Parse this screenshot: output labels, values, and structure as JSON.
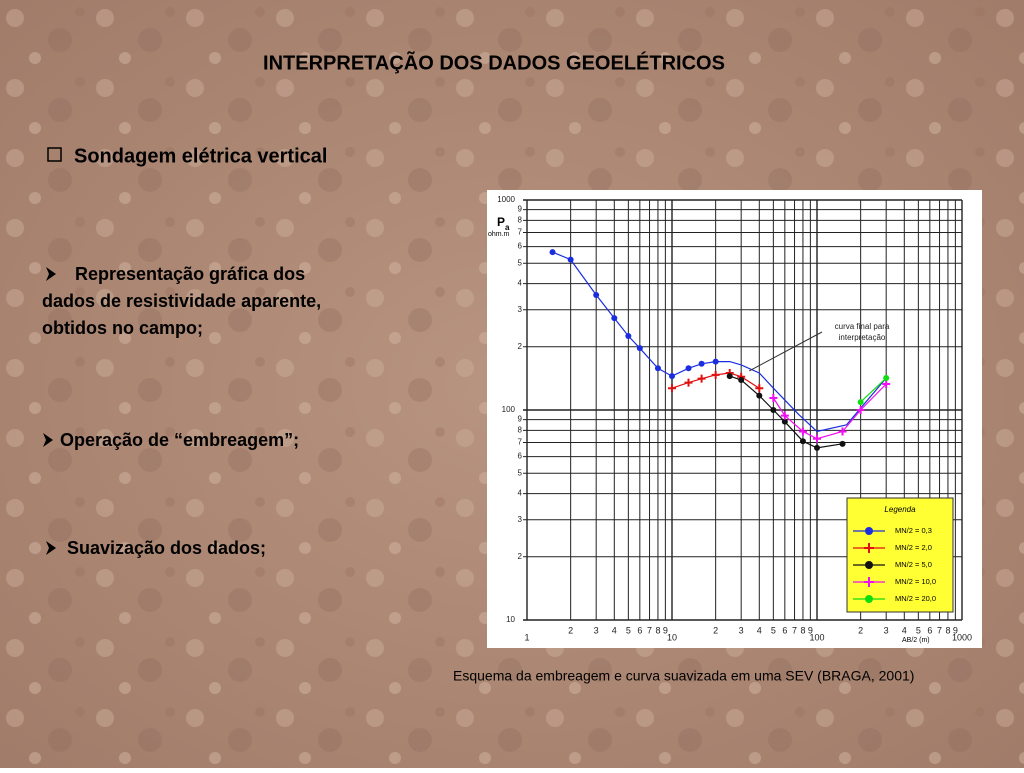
{
  "title": "INTERPRETAÇÃO DOS DADOS GEOELÉTRICOS",
  "heading": "Sondagem elétrica vertical",
  "items": [
    {
      "lines": [
        "Representação gráfica dos",
        "dados de resistividade aparente,",
        "obtidos no campo;"
      ]
    },
    {
      "lines": [
        "Operação  de “embreagem”;"
      ]
    },
    {
      "lines": [
        "Suavização dos dados;"
      ]
    }
  ],
  "caption": "Esquema da embreagem e curva suavizada em uma SEV (BRAGA, 2001)",
  "chart_data": {
    "type": "line",
    "xscale": "log",
    "yscale": "log",
    "grid": true,
    "ylabel": "P",
    "ylabel_sub": "a",
    "yunit": "ohm.m",
    "xlabel": "AB/2 (m)",
    "xlim": [
      1,
      1000
    ],
    "ylim": [
      10,
      1000
    ],
    "xticks": [
      1,
      2,
      3,
      4,
      5,
      6,
      7,
      8,
      9,
      10,
      {
        "value": 20,
        "label": "2"
      },
      {
        "value": 30,
        "label": "3"
      },
      {
        "value": 40,
        "label": "4"
      },
      {
        "value": 50,
        "label": "5"
      },
      {
        "value": 60,
        "label": "6"
      },
      {
        "value": 70,
        "label": "7"
      },
      {
        "value": 80,
        "label": "8"
      },
      {
        "value": 90,
        "label": "9"
      },
      100,
      {
        "value": 200,
        "label": "2"
      },
      {
        "value": 300,
        "label": "3"
      },
      {
        "value": 400,
        "label": "4"
      },
      {
        "value": 500,
        "label": "5"
      },
      {
        "value": 600,
        "label": "6"
      },
      {
        "value": 700,
        "label": "7"
      },
      {
        "value": 800,
        "label": "8"
      },
      {
        "value": 900,
        "label": "9"
      },
      1000
    ],
    "yticks": [
      10,
      {
        "value": 20,
        "label": "2"
      },
      {
        "value": 30,
        "label": "3"
      },
      {
        "value": 40,
        "label": "4"
      },
      {
        "value": 50,
        "label": "5"
      },
      {
        "value": 60,
        "label": "6"
      },
      {
        "value": 70,
        "label": "7"
      },
      {
        "value": 80,
        "label": "8"
      },
      {
        "value": 90,
        "label": "9"
      },
      100,
      {
        "value": 200,
        "label": "2"
      },
      {
        "value": 300,
        "label": "3"
      },
      {
        "value": 400,
        "label": "4"
      },
      {
        "value": 500,
        "label": "5"
      },
      {
        "value": 600,
        "label": "6"
      },
      {
        "value": 700,
        "label": "7"
      },
      {
        "value": 800,
        "label": "8"
      },
      {
        "value": 900,
        "label": "9"
      },
      1000
    ],
    "legend_title": "Legenda",
    "legend_position": "lower right",
    "series": [
      {
        "name": "MN/2 = 0,3",
        "color": "#1a2ee0",
        "marker": "circle",
        "x": [
          1.5,
          2,
          3,
          4,
          5,
          6,
          8,
          10,
          13,
          16,
          20
        ],
        "values": [
          565,
          520,
          353,
          274,
          225,
          197,
          158,
          145,
          158,
          166,
          170
        ]
      },
      {
        "name": "MN/2 = 2,0",
        "color": "#e01010",
        "marker": "plus",
        "x": [
          10,
          13,
          16,
          20,
          25,
          30,
          40
        ],
        "values": [
          127,
          135,
          141,
          147,
          150,
          144,
          127
        ]
      },
      {
        "name": "MN/2 = 5,0",
        "color": "#111111",
        "marker": "circle",
        "x": [
          25,
          30,
          40,
          50,
          60,
          80,
          100,
          150
        ],
        "values": [
          145,
          139,
          117,
          100,
          88,
          71,
          66,
          69
        ]
      },
      {
        "name": "MN/2 = 10,0",
        "color": "#ee10ee",
        "marker": "plus",
        "x": [
          50,
          60,
          80,
          100,
          150,
          200,
          300
        ],
        "values": [
          114,
          94,
          79,
          73,
          79,
          100,
          133
        ]
      },
      {
        "name": "MN/2 = 20,0",
        "color": "#10dd10",
        "marker": "circle",
        "x": [
          200,
          300
        ],
        "values": [
          109,
          142
        ]
      }
    ],
    "final_curve": {
      "lines": [
        "curva final para",
        "interpretação"
      ],
      "color": "#1a2ee0",
      "x": [
        20,
        25,
        30,
        40,
        50,
        75,
        100,
        160,
        300
      ],
      "values": [
        170,
        170,
        164,
        150,
        127,
        95,
        79,
        85,
        142
      ]
    }
  }
}
